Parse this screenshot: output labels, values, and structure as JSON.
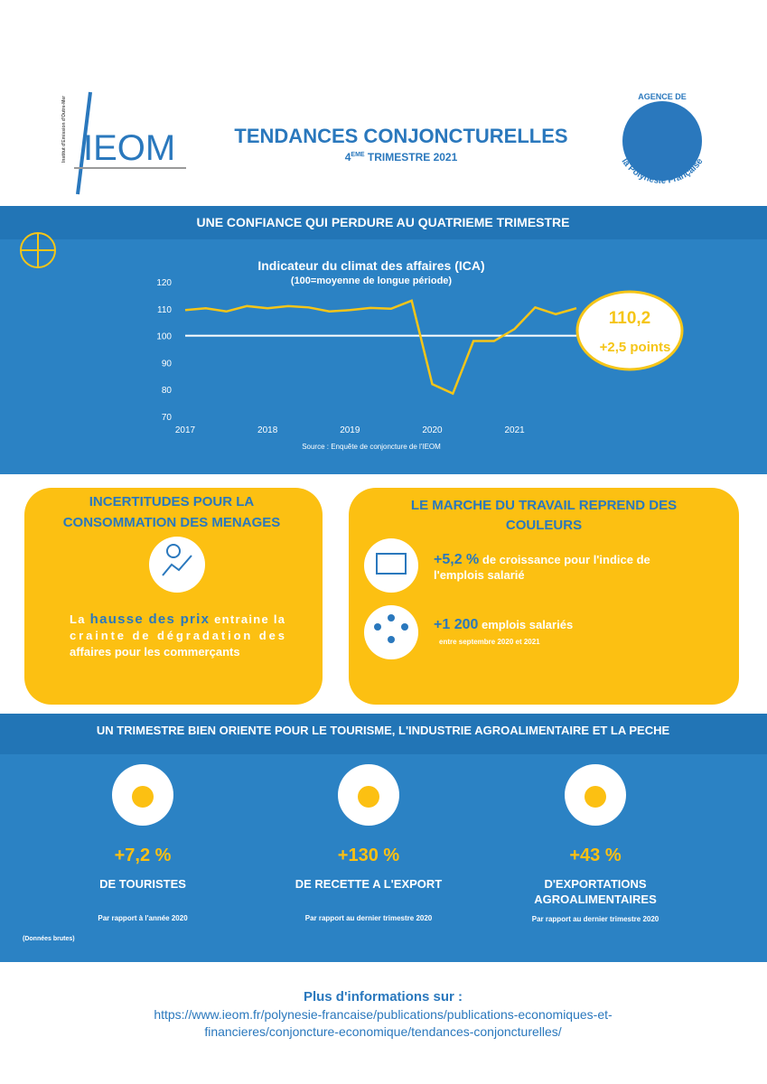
{
  "header": {
    "logo_text": "IEOM",
    "logo_subtext": "Institut d'Emission d'Outre-Mer",
    "title": "TENDANCES CONJONCTURELLES",
    "subtitle": [
      "4",
      "EME",
      " TRIMESTRE 2021"
    ],
    "agency_top": "AGENCE DE",
    "agency_bottom": "la Polynésie Française"
  },
  "section1": {
    "title": "UNE CONFIANCE QUI PERDURE AU QUATRIEME TRIMESTRE"
  },
  "chart_data": {
    "type": "line",
    "title": "Indicateur du climat des affaires (ICA)",
    "subtitle": "(100=moyenne de longue période)",
    "source": "Source : Enquête de conjoncture de l'IEOM",
    "x": [
      2017,
      2017.25,
      2017.5,
      2017.75,
      2018,
      2018.25,
      2018.5,
      2018.75,
      2019,
      2019.25,
      2019.5,
      2019.75,
      2020,
      2020.25,
      2020.5,
      2020.75,
      2021,
      2021.25,
      2021.5,
      2021.75
    ],
    "values": [
      109.5,
      110.2,
      109,
      111,
      110.2,
      111,
      110.5,
      109,
      109.5,
      110.3,
      110,
      113,
      82,
      78.5,
      98,
      98,
      102.5,
      110.5,
      108,
      110.2
    ],
    "color": "#f5c518",
    "xlim": [
      2017,
      2021.75
    ],
    "xticks": [
      2017,
      2018,
      2019,
      2020,
      2021
    ],
    "ylim": [
      70,
      120
    ],
    "yticks": [
      70,
      80,
      90,
      100,
      110,
      120
    ],
    "reference_line": 100
  },
  "callout": {
    "value": "110,2",
    "change": "+2,5 points"
  },
  "box_left": {
    "title": [
      "INCERTITUDES POUR LA",
      "CONSOMMATION DES MENAGES"
    ],
    "lines": [
      [
        {
          "text": "La ",
          "highlight": false
        },
        {
          "text": "hausse des prix",
          "highlight": true
        },
        {
          "text": " entraine la",
          "highlight": false
        }
      ],
      [
        {
          "text": "crainte de dégradation des",
          "highlight": false
        }
      ],
      [
        {
          "text": "affaires pour les commerçants",
          "highlight": false
        }
      ]
    ]
  },
  "box_right": {
    "title": [
      "LE MARCHE DU TRAVAIL REPREND DES",
      "COULEURS"
    ],
    "item1": {
      "value": "+5,2 %",
      "text": [
        " de croissance pour l'indice de",
        "l'emplois salarié"
      ]
    },
    "item2": {
      "value": "+1 200",
      "text": " emplois salariés",
      "note": "entre septembre 2020 et 2021"
    }
  },
  "section2": {
    "title": "UN TRIMESTRE BIEN ORIENTE POUR LE TOURISME, L'INDUSTRIE AGROALIMENTAIRE ET LA PECHE",
    "stats": [
      {
        "value": "+7,2 %",
        "label": [
          "DE TOURISTES"
        ],
        "note": "Par rapport à l'année 2020"
      },
      {
        "value": "+130 %",
        "label": [
          "DE RECETTE A L'EXPORT"
        ],
        "note": "Par rapport au dernier trimestre 2020"
      },
      {
        "value": "+43 %",
        "label": [
          "D'EXPORTATIONS",
          "AGROALIMENTAIRES"
        ],
        "note": "Par rapport au dernier trimestre 2020"
      }
    ],
    "footnote": "(Données brutes)"
  },
  "footer": {
    "heading": "Plus d'informations sur :",
    "url": [
      "https://www.ieom.fr/polynesie-francaise/publications/publications-economiques-et-",
      "financieres/conjoncture-economique/tendances-conjoncturelles/"
    ]
  }
}
